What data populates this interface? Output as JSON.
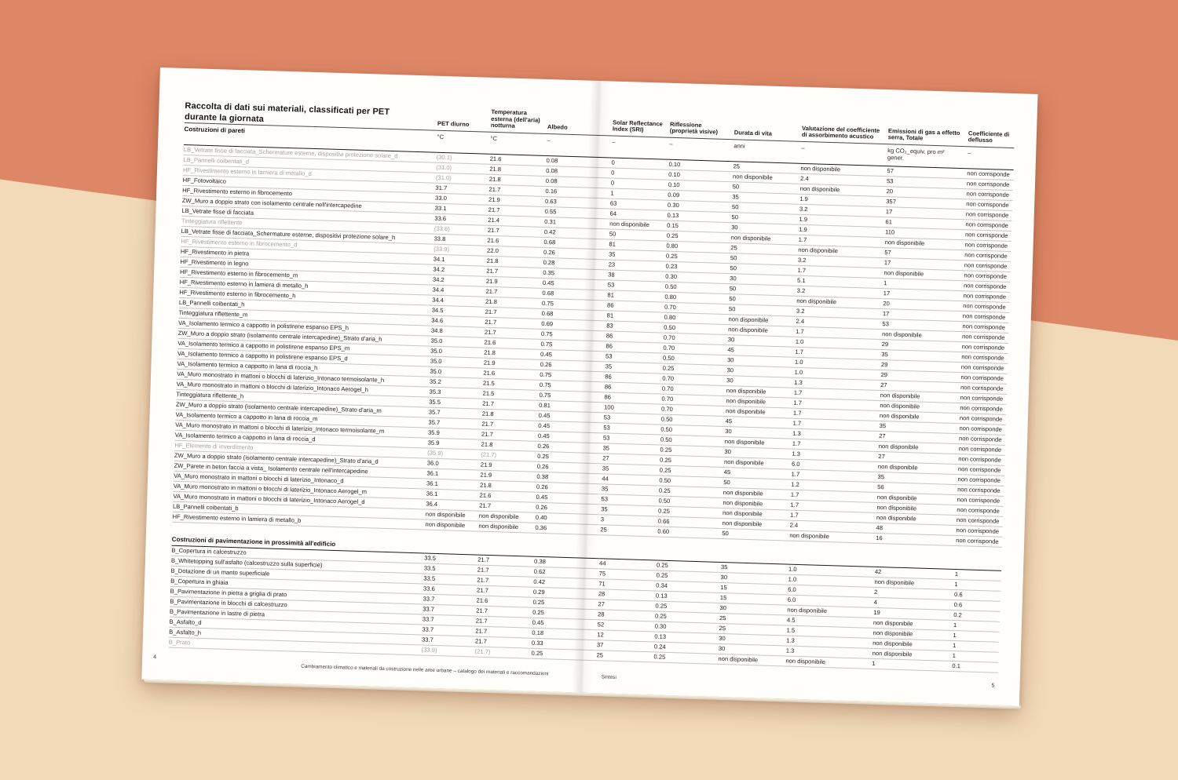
{
  "page": {
    "title_line1": "Raccolta di dati sui materiali, classificati per PET",
    "title_line2": "durante la giornata",
    "footer_left_page_number": "4",
    "footer_text": "Cambiamento climatico e materiali da costruzione nelle aree urbane – catalogo dei materiali e raccomandazioni",
    "footer_section": "Sintesi",
    "footer_right_page_number": "5"
  },
  "colors": {
    "background_top": "#dd8766",
    "background_bottom": "#f2dab8",
    "paper": "#fffefb",
    "rule_dark": "#1a1a1a",
    "rule_light": "#c9c6c1",
    "text": "#1c1c1c",
    "muted_text": "#a3a3a3"
  },
  "table": {
    "columns": [
      "PET diurno",
      "Temperatura esterna (dell'aria) notturna",
      "Albedo",
      "Solar Reflectance Index (SRI)",
      "Riflessione (proprietà visive)",
      "Durata di vita",
      "Valutazione del coefficiente di assorbimento acustico",
      "Emissioni di gas a effetto serra, Totale",
      "Coefficiente di deflusso"
    ],
    "units": [
      "°C",
      "°C",
      "–",
      "–",
      "–",
      "anni",
      "–",
      "kg CO₂_equiv. pro m²\ngener.",
      "–"
    ],
    "section_pareti": "Costruzioni di pareti",
    "section_pavimentazione": "Costruzioni di pavimentazione in prossimità all'edificio",
    "rows_pareti": [
      {
        "label": "LB_Vetrate fisse di facciata_Schermature esterne, dispositivi protezione solare_d",
        "m": true,
        "v": [
          "(30.1)",
          "21.6",
          "0.08",
          "0",
          "0.10",
          "25",
          "non disponibile",
          "57",
          "non corrisponde"
        ]
      },
      {
        "label": "LB_Pannelli coibentati_d",
        "m": true,
        "v": [
          "(31.0)",
          "21.8",
          "0.08",
          "0",
          "0.10",
          "non disponibile",
          "2.4",
          "53",
          "non corrisponde"
        ]
      },
      {
        "label": "HF_Rivestimento esterno in lamiera di metallo_d",
        "m": true,
        "v": [
          "(31.0)",
          "21.8",
          "0.08",
          "0",
          "0.10",
          "50",
          "non disponibile",
          "20",
          "non corrisponde"
        ]
      },
      {
        "label": "HF_Fotovoltaico",
        "m": false,
        "v": [
          "31.7",
          "21.7",
          "0.16",
          "1",
          "0.09",
          "35",
          "1.9",
          "357",
          "non corrisponde"
        ]
      },
      {
        "label": "HF_Rivestimento esterno in fibrocemento",
        "m": false,
        "v": [
          "33.0",
          "21.9",
          "0.63",
          "63",
          "0.30",
          "50",
          "3.2",
          "17",
          "non corrisponde"
        ]
      },
      {
        "label": "ZW_Muro a doppio strato con isolamento centrale nell'intercapedine",
        "m": false,
        "v": [
          "33.1",
          "21.7",
          "0.55",
          "64",
          "0.13",
          "50",
          "1.9",
          "61",
          "non corrisponde"
        ]
      },
      {
        "label": "LB_Vetrate fisse di facciata",
        "m": false,
        "v": [
          "33.6",
          "21.4",
          "0.31",
          "non disponibile",
          "0.15",
          "30",
          "1.9",
          "110",
          "non corrisponde"
        ]
      },
      {
        "label": "Tinteggiatura riflettente",
        "m": true,
        "v": [
          "(33.6)",
          "21.7",
          "0.42",
          "50",
          "0.25",
          "non disponibile",
          "1.7",
          "non disponibile",
          "non corrisponde"
        ]
      },
      {
        "label": "LB_Vetrate fisse di facciata_Schermature esterne, dispositivi protezione solare_h",
        "m": false,
        "v": [
          "33.8",
          "21.6",
          "0.68",
          "81",
          "0.80",
          "25",
          "non disponibile",
          "57",
          "non corrisponde"
        ]
      },
      {
        "label": "HF_Rivestimento esterno in fibrocemento_d",
        "m": true,
        "v": [
          "(33.9)",
          "22.0",
          "0.26",
          "35",
          "0.25",
          "50",
          "3.2",
          "17",
          "non corrisponde"
        ]
      },
      {
        "label": "HF_Rivestimento in pietra",
        "m": false,
        "v": [
          "34.1",
          "21.8",
          "0.28",
          "23",
          "0.23",
          "50",
          "1.7",
          "non disponibile",
          "non corrisponde"
        ]
      },
      {
        "label": "HF_Rivestimento in legno",
        "m": false,
        "v": [
          "34.2",
          "21.7",
          "0.35",
          "38",
          "0.30",
          "30",
          "5.1",
          "1",
          "non corrisponde"
        ]
      },
      {
        "label": "HF_Rivestimento esterno in fibrocemento_m",
        "m": false,
        "v": [
          "34.2",
          "21.9",
          "0.45",
          "53",
          "0.50",
          "50",
          "3.2",
          "17",
          "non corrisponde"
        ]
      },
      {
        "label": "HF_Rivestimento esterno in lamiera di metallo_h",
        "m": false,
        "v": [
          "34.4",
          "21.7",
          "0.68",
          "81",
          "0.80",
          "50",
          "non disponibile",
          "20",
          "non corrisponde"
        ]
      },
      {
        "label": "HF_Rivestimento esterno in fibrocemento_h",
        "m": false,
        "v": [
          "34.4",
          "21.8",
          "0.75",
          "86",
          "0.70",
          "50",
          "3.2",
          "17",
          "non corrisponde"
        ]
      },
      {
        "label": "LB_Pannelli coibentati_h",
        "m": false,
        "v": [
          "34.5",
          "21.7",
          "0.68",
          "81",
          "0.80",
          "non disponibile",
          "2.4",
          "53",
          "non corrisponde"
        ]
      },
      {
        "label": "Tinteggiatura riflettente_m",
        "m": false,
        "v": [
          "34.6",
          "21.7",
          "0.69",
          "83",
          "0.50",
          "non disponibile",
          "1.7",
          "non disponibile",
          "non corrisponde"
        ]
      },
      {
        "label": "VA_Isolamento termico a cappotto in polistirene espanso EPS_h",
        "m": false,
        "v": [
          "34.8",
          "21.7",
          "0.75",
          "86",
          "0.70",
          "30",
          "1.0",
          "29",
          "non corrisponde"
        ]
      },
      {
        "label": "ZW_Muro a doppio strato (isolamento centrale intercapedine)_Strato d'aria_h",
        "m": false,
        "v": [
          "35.0",
          "21.6",
          "0.75",
          "86",
          "0.70",
          "45",
          "1.7",
          "35",
          "non corrisponde"
        ]
      },
      {
        "label": "VA_Isolamento termico a cappotto in polistirene espanso EPS_m",
        "m": false,
        "v": [
          "35.0",
          "21.8",
          "0.45",
          "53",
          "0.50",
          "30",
          "1.0",
          "29",
          "non corrisponde"
        ]
      },
      {
        "label": "VA_Isolamento termico a cappotto in polistirene espanso EPS_d",
        "m": false,
        "v": [
          "35.0",
          "21.9",
          "0.26",
          "35",
          "0.25",
          "30",
          "1.0",
          "29",
          "non corrisponde"
        ]
      },
      {
        "label": "VA_Isolamento termico a cappotto in lana di roccia_h",
        "m": false,
        "v": [
          "35.0",
          "21.6",
          "0.75",
          "86",
          "0.70",
          "30",
          "1.3",
          "27",
          "non corrisponde"
        ]
      },
      {
        "label": "VA_Muro monostrato in mattoni o blocchi di laterizio_Intonaco termoisolante_h",
        "m": false,
        "v": [
          "35.2",
          "21.5",
          "0.75",
          "86",
          "0.70",
          "non disponibile",
          "1.7",
          "non disponibile",
          "non corrisponde"
        ]
      },
      {
        "label": "VA_Muro monostrato in mattoni o blocchi di laterizio_Intonaco Aerogel_h",
        "m": false,
        "v": [
          "35.3",
          "21.5",
          "0.75",
          "86",
          "0.70",
          "non disponibile",
          "1.7",
          "non disponibile",
          "non corrisponde"
        ]
      },
      {
        "label": "Tinteggiatura riflettente_h",
        "m": false,
        "v": [
          "35.5",
          "21.7",
          "0.81",
          "100",
          "0.70",
          "non disponibile",
          "1.7",
          "non disponibile",
          "non corrisponde"
        ]
      },
      {
        "label": "ZW_Muro a doppio strato (isolamento centrale intercapedine)_Strato d'aria_m",
        "m": false,
        "v": [
          "35.7",
          "21.8",
          "0.45",
          "53",
          "0.50",
          "45",
          "1.7",
          "35",
          "non corrisponde"
        ]
      },
      {
        "label": "VA_Isolamento termico a cappotto in lana di roccia_m",
        "m": false,
        "v": [
          "35.7",
          "21.7",
          "0.45",
          "53",
          "0.50",
          "30",
          "1.3",
          "27",
          "non corrisponde"
        ]
      },
      {
        "label": "VA_Muro monostrato in mattoni o blocchi di laterizio_Intonaco termoisolante_m",
        "m": false,
        "v": [
          "35.9",
          "21.7",
          "0.45",
          "53",
          "0.50",
          "non disponibile",
          "1.7",
          "non disponibile",
          "non corrisponde"
        ]
      },
      {
        "label": "VA_Isolamento termico a cappotto in lana di roccia_d",
        "m": false,
        "v": [
          "35.9",
          "21.8",
          "0.26",
          "35",
          "0.25",
          "30",
          "1.3",
          "27",
          "non corrisponde"
        ]
      },
      {
        "label": "HF_Elemento di inverdimento",
        "m": true,
        "v": [
          "(35.9)",
          "(21.7)",
          "0.25",
          "27",
          "0.25",
          "non disponibile",
          "6.0",
          "non disponibile",
          "non corrisponde"
        ]
      },
      {
        "label": "ZW_Muro a doppio strato (isolamento centrale intercapedine)_Strato d'aria_d",
        "m": false,
        "v": [
          "36.0",
          "21.9",
          "0.26",
          "35",
          "0.25",
          "45",
          "1.7",
          "35",
          "non corrisponde"
        ]
      },
      {
        "label": "ZW_Parete in beton faccia a vista_ Isolamento centrale nell'intercapedine",
        "m": false,
        "v": [
          "36.1",
          "21.9",
          "0.38",
          "44",
          "0.50",
          "50",
          "1.2",
          "56",
          "non corrisponde"
        ]
      },
      {
        "label": "VA_Muro monostrato in mattoni o blocchi di laterizio_Intonaco_d",
        "m": false,
        "v": [
          "36.1",
          "21.8",
          "0.26",
          "35",
          "0.25",
          "non disponibile",
          "1.7",
          "non disponibile",
          "non corrisponde"
        ]
      },
      {
        "label": "VA_Muro monostrato in mattoni o blocchi di laterizio_Intonaco Aerogel_m",
        "m": false,
        "v": [
          "36.1",
          "21.6",
          "0.45",
          "53",
          "0.50",
          "non disponibile",
          "1.7",
          "non disponibile",
          "non corrisponde"
        ]
      },
      {
        "label": "VA_Muro monostrato in mattoni o blocchi di laterizio_Intonaco Aerogel_d",
        "m": false,
        "v": [
          "36.4",
          "21.7",
          "0.26",
          "35",
          "0.25",
          "non disponibile",
          "1.7",
          "non disponibile",
          "non corrisponde"
        ]
      },
      {
        "label": "LB_Pannelli coibentati_b",
        "m": false,
        "v": [
          "non disponibile",
          "non disponibile",
          "0.40",
          "3",
          "0.66",
          "non disponibile",
          "2.4",
          "48",
          "non corrisponde"
        ]
      },
      {
        "label": "HF_Rivestimento esterno in lamiera di metallo_b",
        "m": false,
        "v": [
          "non disponibile",
          "non disponibile",
          "0.36",
          "25",
          "0.60",
          "50",
          "non disponibile",
          "16",
          "non corrisponde"
        ]
      }
    ],
    "rows_pavimentazione": [
      {
        "label": "B_Copertura in calcestruzzo",
        "m": false,
        "v": [
          "33.5",
          "21.7",
          "0.38",
          "44",
          "0.25",
          "35",
          "1.0",
          "42",
          "1"
        ]
      },
      {
        "label": "B_Whitetopping sull'asfalto (calcestruzzo sulla superficie)",
        "m": false,
        "v": [
          "33.5",
          "21.7",
          "0.62",
          "75",
          "0.25",
          "30",
          "1.0",
          "non disponibile",
          "1"
        ]
      },
      {
        "label": "B_Dotazione di un manto superficiale",
        "m": false,
        "v": [
          "33.5",
          "21.7",
          "0.42",
          "71",
          "0.34",
          "15",
          "6.0",
          "2",
          "0.6"
        ]
      },
      {
        "label": "B_Copertura in ghiaia",
        "m": false,
        "v": [
          "33.6",
          "21.7",
          "0.29",
          "28",
          "0.13",
          "15",
          "6.0",
          "4",
          "0.6"
        ]
      },
      {
        "label": "B_Pavimentazione in pietra a griglia di prato",
        "m": false,
        "v": [
          "33.7",
          "21.6",
          "0.25",
          "27",
          "0.25",
          "30",
          "non disponibile",
          "19",
          "0.2"
        ]
      },
      {
        "label": "B_Pavimentazione in blocchi di calcestruzzo",
        "m": false,
        "v": [
          "33.7",
          "21.7",
          "0.25",
          "28",
          "0.25",
          "25",
          "4.5",
          "non disponibile",
          "1"
        ]
      },
      {
        "label": "B_Pavimentazione in lastre di pietra",
        "m": false,
        "v": [
          "33.7",
          "21.7",
          "0.45",
          "52",
          "0.30",
          "25",
          "1.5",
          "non disponibile",
          "1"
        ]
      },
      {
        "label": "B_Asfalto_d",
        "m": false,
        "v": [
          "33.7",
          "21.7",
          "0.18",
          "12",
          "0.13",
          "30",
          "1.3",
          "non disponibile",
          "1"
        ]
      },
      {
        "label": "B_Asfalto_h",
        "m": false,
        "v": [
          "33.7",
          "21.7",
          "0.33",
          "37",
          "0.24",
          "30",
          "1.3",
          "non disponibile",
          "1"
        ]
      },
      {
        "label": "B_Prato",
        "m": true,
        "v": [
          "(33.9)",
          "(21.7)",
          "0.25",
          "25",
          "0.25",
          "non disponibile",
          "non disponibile",
          "1",
          "0.1"
        ]
      }
    ]
  }
}
